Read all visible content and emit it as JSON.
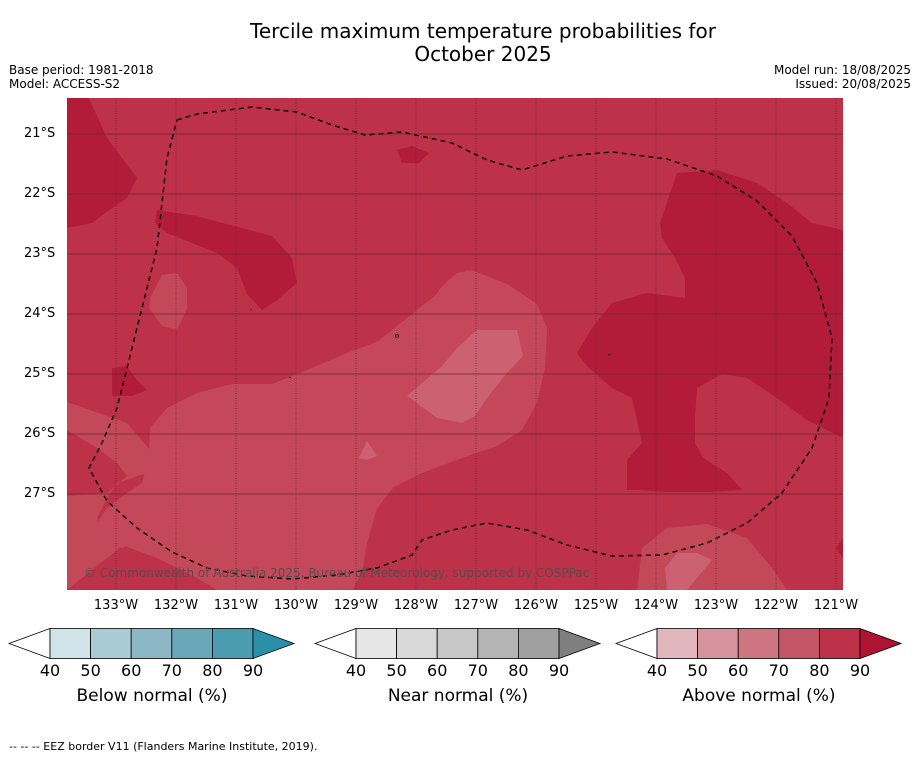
{
  "title_line1": "Tercile maximum temperature probabilities for",
  "title_line2": "October 2025",
  "base_period": "Base period: 1981-2018",
  "model": "Model: ACCESS-S2",
  "model_run": "Model run: 18/08/2025",
  "issued": "Issued: 20/08/2025",
  "copyright": "© Commonwealth of Australia 2025, Bureau of Meteorology, supported by COSPPac",
  "lat_labels": [
    "21°S",
    "22°S",
    "23°S",
    "24°S",
    "25°S",
    "26°S",
    "27°S"
  ],
  "lon_labels": [
    "133°W",
    "132°W",
    "131°W",
    "130°W",
    "129°W",
    "128°W",
    "127°W",
    "126°W",
    "125°W",
    "124°W",
    "123°W",
    "122°W",
    "121°W"
  ],
  "colorbars": [
    {
      "label": "Below normal (%)",
      "ticks": [
        "40",
        "50",
        "60",
        "70",
        "80",
        "90"
      ],
      "colors": [
        "#ffffff",
        "#cfe3e8",
        "#a9cbd4",
        "#8cb8c6",
        "#6aa8b9",
        "#4a9cae",
        "#2b8fa8"
      ]
    },
    {
      "label": "Near normal (%)",
      "ticks": [
        "40",
        "50",
        "60",
        "70",
        "80",
        "90"
      ],
      "colors": [
        "#ffffff",
        "#e6e6e6",
        "#d8d8d8",
        "#c8c8c8",
        "#b4b4b4",
        "#a0a0a0",
        "#7f7f7f"
      ]
    },
    {
      "label": "Above normal (%)",
      "ticks": [
        "40",
        "50",
        "60",
        "70",
        "80",
        "90"
      ],
      "colors": [
        "#ffffff",
        "#e3b6bd",
        "#d8949e",
        "#cd7580",
        "#c45565",
        "#bd3149",
        "#ae1432"
      ]
    }
  ],
  "footer": "--  --  -- EEZ border V11 (Flanders Marine Institute, 2019)."
}
